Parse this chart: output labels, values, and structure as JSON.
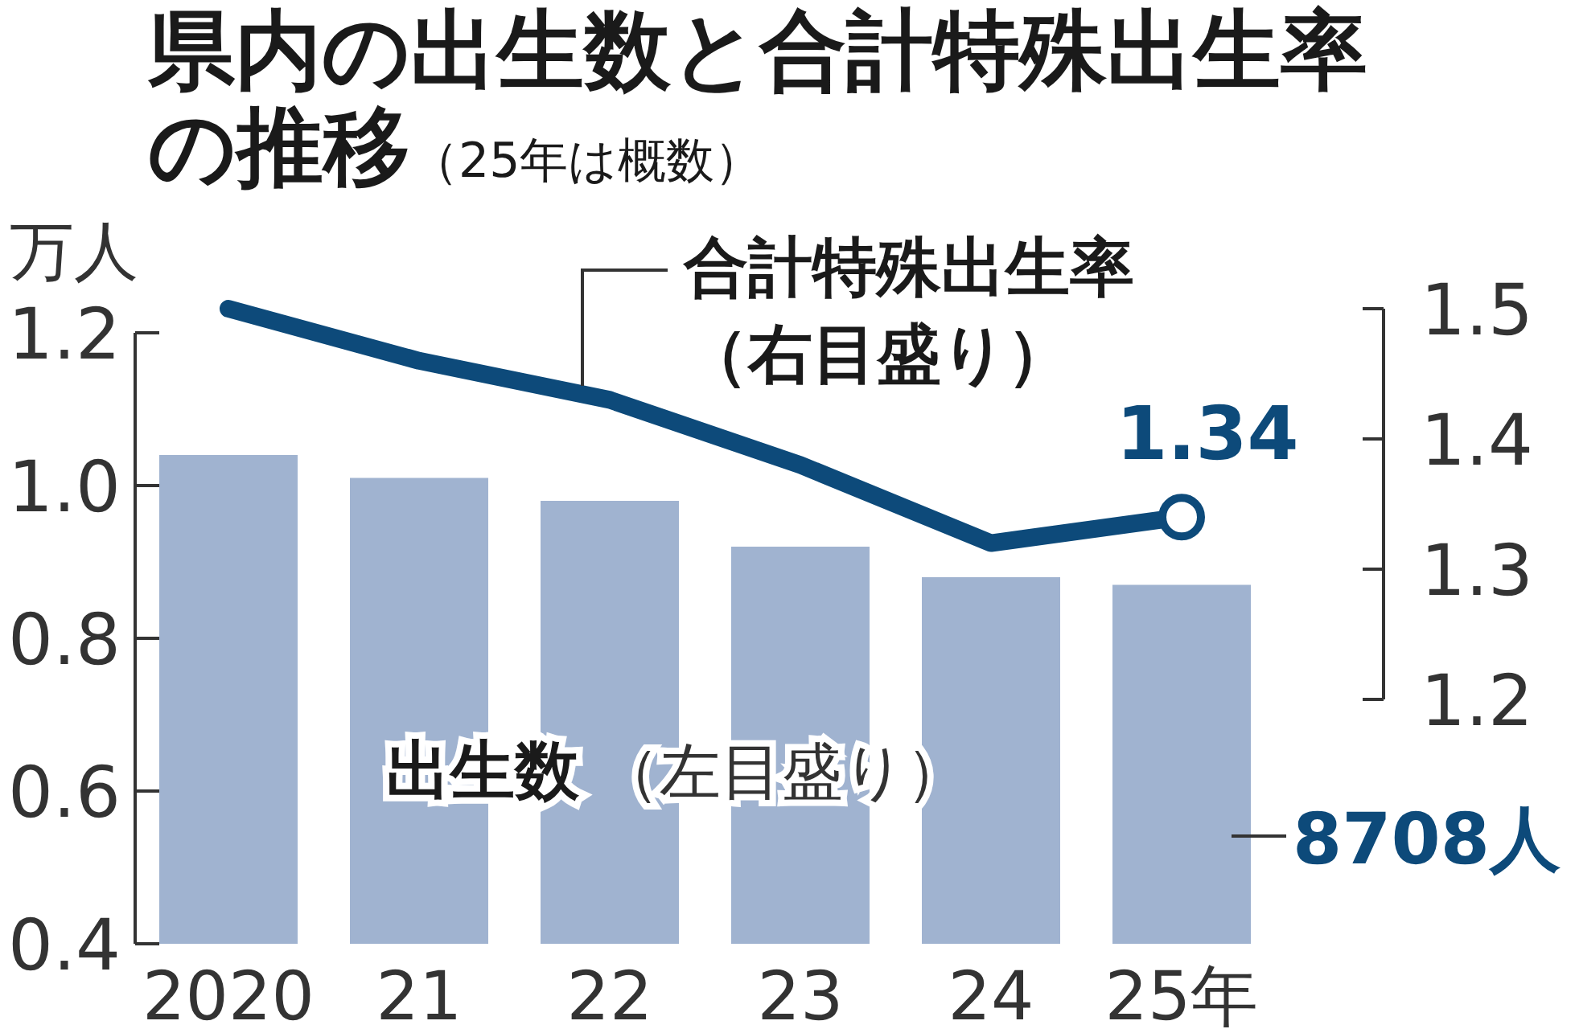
{
  "chart_data": {
    "type": "bar",
    "title": "県内の出生数と合計特殊出生率の推移",
    "subtitle": "（25年は概数）",
    "ylabel": "万人",
    "categories": [
      "2020",
      "21",
      "22",
      "23",
      "24",
      "25年"
    ],
    "series": [
      {
        "name": "出生数",
        "color": "#a0b3d0",
        "values": [
          1.04,
          1.01,
          0.98,
          0.92,
          0.88,
          0.87
        ]
      },
      {
        "name": "合計特殊出生率（右目盛り）",
        "type": "line",
        "axis": "y2",
        "color": "#0d4a7a",
        "values": [
          1.5,
          1.46,
          1.43,
          1.38,
          1.32,
          1.34
        ],
        "value_labels": [
          null,
          null,
          null,
          null,
          null,
          "1.34"
        ]
      }
    ],
    "annotations": [
      "（左目盛り）",
      "8708人"
    ],
    "ylim": [
      0.4,
      1.2
    ],
    "yticks": [
      0.4,
      0.6,
      0.8,
      {
        "value": 1.0,
        "label": "1.0"
      },
      1.2
    ],
    "y2lim": [
      1.2,
      1.5
    ],
    "y2ticks": [
      1.2,
      1.3,
      1.4,
      1.5
    ]
  }
}
